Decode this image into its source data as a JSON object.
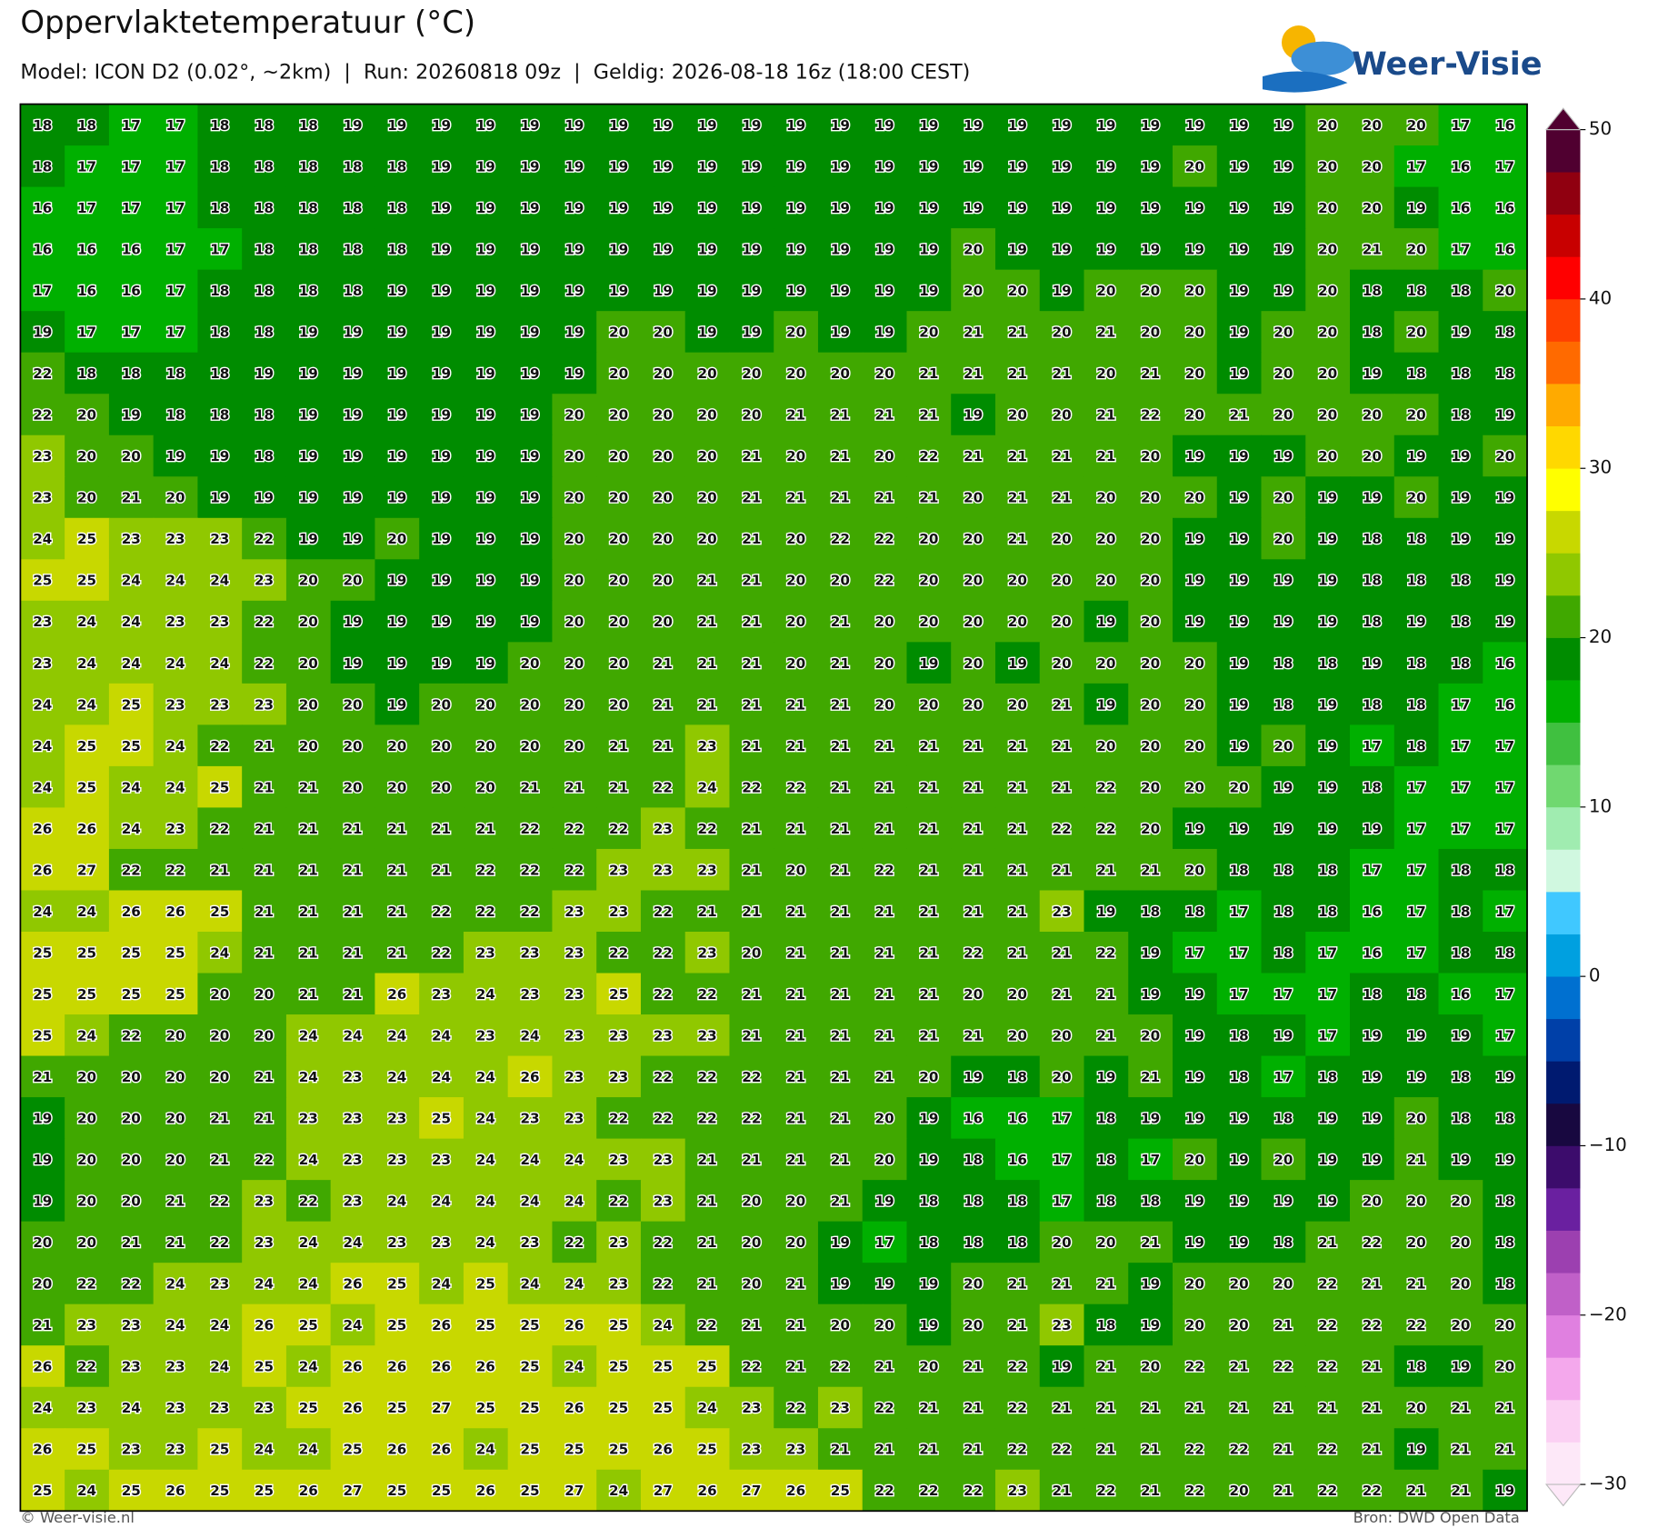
{
  "map": {
    "title": "Oppervlaktetemperatuur (°C)",
    "subtitle": "Model: ICON D2 (0.02°, ~2km)  |  Run: 20260818 09z  |  Geldig: 2026-08-18 16z (18:00 CEST)",
    "logo": "Weer-Visie",
    "footer_left": "© Weer-visie.nl",
    "footer_right": "Bron: DWD Open Data",
    "rows": [
      [
        18,
        18,
        17,
        17,
        18,
        18,
        18,
        19,
        19,
        19,
        19,
        19,
        19,
        19,
        19,
        19,
        19,
        19,
        19,
        19,
        19,
        19,
        19,
        19,
        19,
        19,
        19,
        19,
        19,
        20,
        20,
        20,
        17,
        16
      ],
      [
        18,
        17,
        17,
        17,
        18,
        18,
        18,
        18,
        18,
        19,
        19,
        19,
        19,
        19,
        19,
        19,
        19,
        19,
        19,
        19,
        19,
        19,
        19,
        19,
        19,
        19,
        20,
        19,
        19,
        20,
        20,
        17,
        16,
        17
      ],
      [
        16,
        17,
        17,
        17,
        18,
        18,
        18,
        18,
        18,
        19,
        19,
        19,
        19,
        19,
        19,
        19,
        19,
        19,
        19,
        19,
        19,
        19,
        19,
        19,
        19,
        19,
        19,
        19,
        19,
        20,
        20,
        19,
        16,
        16
      ],
      [
        16,
        16,
        16,
        17,
        17,
        18,
        18,
        18,
        18,
        19,
        19,
        19,
        19,
        19,
        19,
        19,
        19,
        19,
        19,
        19,
        19,
        20,
        19,
        19,
        19,
        19,
        19,
        19,
        19,
        20,
        21,
        20,
        17,
        16
      ],
      [
        17,
        16,
        16,
        17,
        18,
        18,
        18,
        18,
        19,
        19,
        19,
        19,
        19,
        19,
        19,
        19,
        19,
        19,
        19,
        19,
        19,
        20,
        20,
        19,
        20,
        20,
        20,
        19,
        19,
        20,
        18,
        18,
        18,
        20
      ],
      [
        19,
        17,
        17,
        17,
        18,
        18,
        19,
        19,
        19,
        19,
        19,
        19,
        19,
        20,
        20,
        19,
        19,
        20,
        19,
        19,
        20,
        21,
        21,
        20,
        21,
        20,
        20,
        19,
        20,
        20,
        18,
        20,
        19,
        18
      ],
      [
        22,
        18,
        18,
        18,
        18,
        19,
        19,
        19,
        19,
        19,
        19,
        19,
        19,
        20,
        20,
        20,
        20,
        20,
        20,
        20,
        21,
        21,
        21,
        21,
        20,
        21,
        20,
        19,
        20,
        20,
        19,
        18,
        18,
        18
      ],
      [
        22,
        20,
        19,
        18,
        18,
        18,
        19,
        19,
        19,
        19,
        19,
        19,
        20,
        20,
        20,
        20,
        20,
        21,
        21,
        21,
        21,
        19,
        20,
        20,
        21,
        22,
        20,
        21,
        20,
        20,
        20,
        20,
        18,
        19
      ],
      [
        23,
        20,
        20,
        19,
        19,
        18,
        19,
        19,
        19,
        19,
        19,
        19,
        20,
        20,
        20,
        20,
        21,
        20,
        21,
        20,
        22,
        21,
        21,
        21,
        21,
        20,
        19,
        19,
        19,
        20,
        20,
        19,
        19,
        20
      ],
      [
        23,
        20,
        21,
        20,
        19,
        19,
        19,
        19,
        19,
        19,
        19,
        19,
        20,
        20,
        20,
        20,
        21,
        21,
        21,
        21,
        21,
        20,
        21,
        21,
        20,
        20,
        20,
        19,
        20,
        19,
        19,
        20,
        19,
        19
      ],
      [
        24,
        25,
        23,
        23,
        23,
        22,
        19,
        19,
        20,
        19,
        19,
        19,
        20,
        20,
        20,
        20,
        21,
        20,
        22,
        22,
        20,
        20,
        21,
        20,
        20,
        20,
        19,
        19,
        20,
        19,
        18,
        18,
        19,
        19
      ],
      [
        25,
        25,
        24,
        24,
        24,
        23,
        20,
        20,
        19,
        19,
        19,
        19,
        20,
        20,
        20,
        21,
        21,
        20,
        20,
        22,
        20,
        20,
        20,
        20,
        20,
        20,
        19,
        19,
        19,
        19,
        18,
        18,
        18,
        19
      ],
      [
        23,
        24,
        24,
        23,
        23,
        22,
        20,
        19,
        19,
        19,
        19,
        19,
        20,
        20,
        20,
        21,
        21,
        20,
        21,
        20,
        20,
        20,
        20,
        20,
        19,
        20,
        19,
        19,
        19,
        19,
        18,
        19,
        18,
        19
      ],
      [
        23,
        24,
        24,
        24,
        24,
        22,
        20,
        19,
        19,
        19,
        19,
        20,
        20,
        20,
        21,
        21,
        21,
        20,
        21,
        20,
        19,
        20,
        19,
        20,
        20,
        20,
        20,
        19,
        18,
        18,
        19,
        18,
        18,
        16
      ],
      [
        24,
        24,
        25,
        23,
        23,
        23,
        20,
        20,
        19,
        20,
        20,
        20,
        20,
        20,
        21,
        21,
        21,
        21,
        21,
        20,
        20,
        20,
        20,
        21,
        19,
        20,
        20,
        19,
        18,
        19,
        18,
        18,
        17,
        16
      ],
      [
        24,
        25,
        25,
        24,
        22,
        21,
        20,
        20,
        20,
        20,
        20,
        20,
        20,
        21,
        21,
        23,
        21,
        21,
        21,
        21,
        21,
        21,
        21,
        21,
        20,
        20,
        20,
        19,
        20,
        19,
        17,
        18,
        17,
        17
      ],
      [
        24,
        25,
        24,
        24,
        25,
        21,
        21,
        20,
        20,
        20,
        20,
        21,
        21,
        21,
        22,
        24,
        22,
        22,
        21,
        21,
        21,
        21,
        21,
        21,
        22,
        20,
        20,
        20,
        19,
        19,
        18,
        17,
        17,
        17
      ],
      [
        26,
        26,
        24,
        23,
        22,
        21,
        21,
        21,
        21,
        21,
        21,
        22,
        22,
        22,
        23,
        22,
        21,
        21,
        21,
        21,
        21,
        21,
        21,
        22,
        22,
        20,
        19,
        19,
        19,
        19,
        19,
        17,
        17,
        17
      ],
      [
        26,
        27,
        22,
        22,
        21,
        21,
        21,
        21,
        21,
        21,
        22,
        22,
        22,
        23,
        23,
        23,
        21,
        20,
        21,
        22,
        21,
        21,
        21,
        21,
        21,
        21,
        20,
        18,
        18,
        18,
        17,
        17,
        18,
        18
      ],
      [
        24,
        24,
        26,
        26,
        25,
        21,
        21,
        21,
        21,
        22,
        22,
        22,
        23,
        23,
        22,
        21,
        21,
        21,
        21,
        21,
        21,
        21,
        21,
        23,
        19,
        18,
        18,
        17,
        18,
        18,
        16,
        17,
        18,
        17
      ],
      [
        25,
        25,
        25,
        25,
        24,
        21,
        21,
        21,
        21,
        22,
        23,
        23,
        23,
        22,
        22,
        23,
        20,
        21,
        21,
        21,
        21,
        22,
        21,
        21,
        22,
        19,
        17,
        17,
        18,
        17,
        16,
        17,
        18,
        18
      ],
      [
        25,
        25,
        25,
        25,
        20,
        20,
        21,
        21,
        26,
        23,
        24,
        23,
        23,
        25,
        22,
        22,
        21,
        21,
        21,
        21,
        21,
        20,
        20,
        21,
        21,
        19,
        19,
        17,
        17,
        17,
        18,
        18,
        16,
        17
      ],
      [
        25,
        24,
        22,
        20,
        20,
        20,
        24,
        24,
        24,
        24,
        23,
        24,
        23,
        23,
        23,
        23,
        21,
        21,
        21,
        21,
        21,
        21,
        20,
        20,
        21,
        20,
        19,
        18,
        19,
        17,
        19,
        19,
        19,
        17
      ],
      [
        21,
        20,
        20,
        20,
        20,
        21,
        24,
        23,
        24,
        24,
        24,
        26,
        23,
        23,
        22,
        22,
        22,
        21,
        21,
        21,
        20,
        19,
        18,
        20,
        19,
        21,
        19,
        18,
        17,
        18,
        19,
        19,
        18,
        19
      ],
      [
        19,
        20,
        20,
        20,
        21,
        21,
        23,
        23,
        23,
        25,
        24,
        23,
        23,
        22,
        22,
        22,
        22,
        21,
        21,
        20,
        19,
        16,
        16,
        17,
        18,
        19,
        19,
        19,
        18,
        19,
        19,
        20,
        18,
        18
      ],
      [
        19,
        20,
        20,
        20,
        21,
        22,
        24,
        23,
        23,
        23,
        24,
        24,
        24,
        23,
        23,
        21,
        21,
        21,
        21,
        20,
        19,
        18,
        16,
        17,
        18,
        17,
        20,
        19,
        20,
        19,
        19,
        21,
        19,
        19
      ],
      [
        19,
        20,
        20,
        21,
        22,
        23,
        22,
        23,
        24,
        24,
        24,
        24,
        24,
        22,
        23,
        21,
        20,
        20,
        21,
        19,
        18,
        18,
        18,
        17,
        18,
        18,
        19,
        19,
        19,
        19,
        20,
        20,
        20,
        18
      ],
      [
        20,
        20,
        21,
        21,
        22,
        23,
        24,
        24,
        23,
        23,
        24,
        23,
        22,
        23,
        22,
        21,
        20,
        20,
        19,
        17,
        18,
        18,
        18,
        20,
        20,
        21,
        19,
        19,
        18,
        21,
        22,
        20,
        20,
        18
      ],
      [
        20,
        22,
        22,
        24,
        23,
        24,
        24,
        26,
        25,
        24,
        25,
        24,
        24,
        23,
        22,
        21,
        20,
        21,
        19,
        19,
        19,
        20,
        21,
        21,
        21,
        19,
        20,
        20,
        20,
        22,
        21,
        21,
        20,
        18
      ],
      [
        21,
        23,
        23,
        24,
        24,
        26,
        25,
        24,
        25,
        26,
        25,
        25,
        26,
        25,
        24,
        22,
        21,
        21,
        20,
        20,
        19,
        20,
        21,
        23,
        18,
        19,
        20,
        20,
        21,
        22,
        22,
        22,
        20,
        20
      ],
      [
        26,
        22,
        23,
        23,
        24,
        25,
        24,
        26,
        26,
        26,
        26,
        25,
        24,
        25,
        25,
        25,
        22,
        21,
        22,
        21,
        20,
        21,
        22,
        19,
        21,
        20,
        22,
        21,
        22,
        22,
        21,
        18,
        19,
        20
      ],
      [
        24,
        23,
        24,
        23,
        23,
        23,
        25,
        26,
        25,
        27,
        25,
        25,
        26,
        25,
        25,
        24,
        23,
        22,
        23,
        22,
        21,
        21,
        22,
        21,
        21,
        21,
        21,
        21,
        21,
        21,
        21,
        20,
        21,
        21
      ],
      [
        26,
        25,
        23,
        23,
        25,
        24,
        24,
        25,
        26,
        26,
        24,
        25,
        25,
        25,
        26,
        25,
        23,
        23,
        21,
        21,
        21,
        21,
        22,
        22,
        21,
        21,
        22,
        22,
        21,
        22,
        21,
        19,
        21,
        21
      ],
      [
        25,
        24,
        25,
        26,
        25,
        25,
        26,
        27,
        25,
        25,
        26,
        25,
        27,
        24,
        27,
        26,
        27,
        26,
        25,
        22,
        22,
        22,
        23,
        21,
        22,
        21,
        22,
        20,
        21,
        22,
        22,
        21,
        21,
        19
      ]
    ],
    "colorbar": {
      "lim": [
        -30,
        50
      ],
      "ticks": [
        50,
        40,
        30,
        20,
        10,
        0,
        {
          "value": -10,
          "label": "−10"
        },
        {
          "value": -20,
          "label": "−20"
        },
        {
          "value": -30,
          "label": "−30"
        }
      ],
      "colors": [
        "#fde8f8",
        "#fbd0f3",
        "#f4a8ec",
        "#e080e0",
        "#c060c8",
        "#9c40b0",
        "#6a20a0",
        "#3c0c6c",
        "#180840",
        "#001a70",
        "#0040a8",
        "#0070d0",
        "#00a0e0",
        "#40c8ff",
        "#d0f8e0",
        "#a0ecb0",
        "#70d870",
        "#40c040",
        "#00b000",
        "#008c00",
        "#40a800",
        "#90c800",
        "#c8d800",
        "#ffff00",
        "#ffd800",
        "#ffaa00",
        "#ff6a00",
        "#ff4000",
        "#ff0000",
        "#c80000",
        "#900010",
        "#500030"
      ]
    }
  }
}
